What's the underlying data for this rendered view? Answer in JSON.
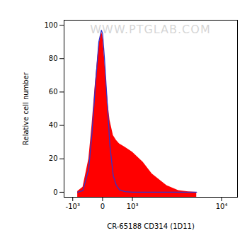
{
  "chart_data": {
    "type": "area",
    "x_label": "CR-65188 CD314 (1D11)",
    "y_label": "Relative cell number",
    "annotations": [
      "WWW.PTGLAB.COM"
    ],
    "log": "x",
    "grid": false,
    "x": [
      -800,
      -600,
      -400,
      -300,
      -200,
      -100,
      -30,
      0,
      50,
      100,
      150,
      200,
      300,
      400,
      500,
      700,
      1000,
      1500,
      2000,
      3000,
      4000,
      5000,
      6000
    ],
    "series": [
      {
        "type": "area",
        "color": "#ff0000",
        "values": [
          0.5,
          3,
          20,
          40,
          65,
          88,
          96,
          94,
          80,
          65,
          52,
          43,
          34,
          31,
          29,
          27,
          24,
          18,
          11,
          4,
          1,
          0.3,
          0
        ]
      },
      {
        "type": "line",
        "color": "#3333cc",
        "values": [
          0,
          1,
          14,
          35,
          63,
          90,
          97,
          95,
          80,
          62,
          45,
          28,
          10,
          4,
          1.5,
          0.3,
          0,
          0,
          0,
          0,
          0,
          0,
          0
        ]
      }
    ],
    "xlim": [
      -1400,
      13600
    ],
    "xticks": [
      {
        "value": -1000,
        "label": "-10³"
      },
      0,
      {
        "value": 1000,
        "label": "10³"
      },
      {
        "value": 10000,
        "label": "10⁴"
      }
    ],
    "ylim": [
      -3,
      103
    ],
    "yticks": [
      0,
      20,
      40,
      60,
      80,
      100
    ]
  }
}
